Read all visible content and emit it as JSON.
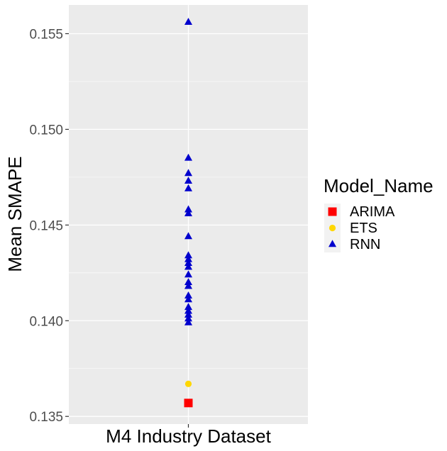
{
  "chart_data": {
    "type": "scatter",
    "title": "",
    "xlabel": "",
    "ylabel": "Mean SMAPE",
    "categories": [
      "M4 Industry Dataset"
    ],
    "ylim": [
      0.1346,
      0.1565
    ],
    "yticks": [
      0.135,
      0.14,
      0.145,
      0.15,
      0.155
    ],
    "ytick_labels": [
      "0.135",
      "0.140",
      "0.145",
      "0.150",
      "0.155"
    ],
    "grid": true,
    "legend": {
      "title": "Model_Name",
      "placement": "right"
    },
    "series": [
      {
        "name": "ARIMA",
        "marker": "square",
        "color": "#ff0000",
        "points": [
          {
            "x": "M4 Industry Dataset",
            "y": 0.1357
          }
        ]
      },
      {
        "name": "ETS",
        "marker": "circle",
        "color": "#ffd700",
        "points": [
          {
            "x": "M4 Industry Dataset",
            "y": 0.1367
          }
        ]
      },
      {
        "name": "RNN",
        "marker": "triangle",
        "color": "#0000cd",
        "points": [
          {
            "x": "M4 Industry Dataset",
            "y": 0.1556
          },
          {
            "x": "M4 Industry Dataset",
            "y": 0.1485
          },
          {
            "x": "M4 Industry Dataset",
            "y": 0.1477
          },
          {
            "x": "M4 Industry Dataset",
            "y": 0.1473
          },
          {
            "x": "M4 Industry Dataset",
            "y": 0.1469
          },
          {
            "x": "M4 Industry Dataset",
            "y": 0.1458
          },
          {
            "x": "M4 Industry Dataset",
            "y": 0.1456
          },
          {
            "x": "M4 Industry Dataset",
            "y": 0.1444
          },
          {
            "x": "M4 Industry Dataset",
            "y": 0.1434
          },
          {
            "x": "M4 Industry Dataset",
            "y": 0.1432
          },
          {
            "x": "M4 Industry Dataset",
            "y": 0.143
          },
          {
            "x": "M4 Industry Dataset",
            "y": 0.1428
          },
          {
            "x": "M4 Industry Dataset",
            "y": 0.1424
          },
          {
            "x": "M4 Industry Dataset",
            "y": 0.142
          },
          {
            "x": "M4 Industry Dataset",
            "y": 0.1418
          },
          {
            "x": "M4 Industry Dataset",
            "y": 0.1413
          },
          {
            "x": "M4 Industry Dataset",
            "y": 0.1411
          },
          {
            "x": "M4 Industry Dataset",
            "y": 0.1407
          },
          {
            "x": "M4 Industry Dataset",
            "y": 0.1405
          },
          {
            "x": "M4 Industry Dataset",
            "y": 0.1403
          },
          {
            "x": "M4 Industry Dataset",
            "y": 0.1401
          },
          {
            "x": "M4 Industry Dataset",
            "y": 0.1399
          }
        ]
      }
    ]
  }
}
